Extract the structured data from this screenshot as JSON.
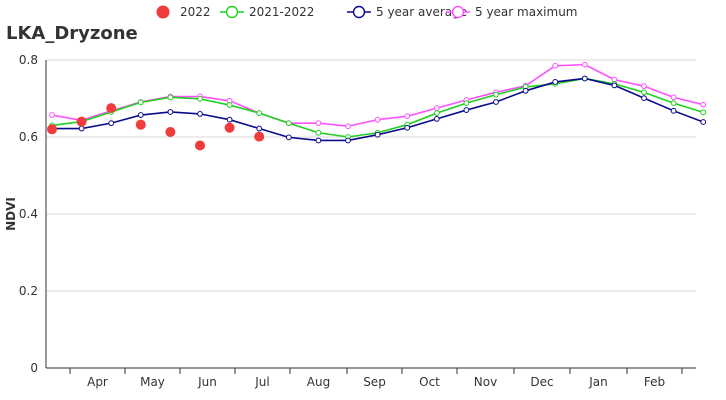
{
  "chart_data": {
    "type": "line",
    "title": "LKA_Dryzone",
    "ylabel": "NDVI",
    "xlabel": "",
    "ylim": [
      0,
      0.8
    ],
    "yticks": [
      0,
      0.2,
      0.4,
      0.6,
      0.8
    ],
    "ytick_labels": [
      "0",
      "0.2",
      "0.4",
      "0.6",
      "0.8"
    ],
    "month_labels": [
      "Apr",
      "May",
      "Jun",
      "Jul",
      "Aug",
      "Sep",
      "Oct",
      "Nov",
      "Dec",
      "Jan",
      "Feb"
    ],
    "grid": true,
    "legend_position": "top",
    "series": [
      {
        "name": "2022",
        "style": "scatter",
        "color": "#f03c3c",
        "values": [
          0.62,
          0.64,
          0.675,
          0.632,
          0.613,
          0.578,
          0.624,
          0.601
        ]
      },
      {
        "name": "2021-2022",
        "style": "line",
        "color": "#1ed21e",
        "values": [
          0.63,
          0.64,
          0.665,
          0.69,
          0.703,
          0.699,
          0.683,
          0.662,
          0.636,
          0.611,
          0.6,
          0.611,
          0.632,
          0.662,
          0.688,
          0.71,
          0.73,
          0.738,
          0.752,
          0.738,
          0.716,
          0.688,
          0.664
        ]
      },
      {
        "name": "5 year average",
        "style": "line",
        "color": "#0a0a8c",
        "values": [
          0.622,
          0.622,
          0.636,
          0.657,
          0.665,
          0.66,
          0.645,
          0.622,
          0.599,
          0.591,
          0.591,
          0.606,
          0.624,
          0.647,
          0.67,
          0.691,
          0.72,
          0.743,
          0.752,
          0.734,
          0.701,
          0.668,
          0.639
        ]
      },
      {
        "name": "5 year maximum",
        "style": "line",
        "color": "#ff50ff",
        "values": [
          0.657,
          0.643,
          0.668,
          0.691,
          0.705,
          0.705,
          0.694,
          0.662,
          0.636,
          0.636,
          0.628,
          0.645,
          0.654,
          0.675,
          0.696,
          0.716,
          0.733,
          0.785,
          0.788,
          0.749,
          0.732,
          0.703,
          0.684
        ]
      }
    ]
  }
}
